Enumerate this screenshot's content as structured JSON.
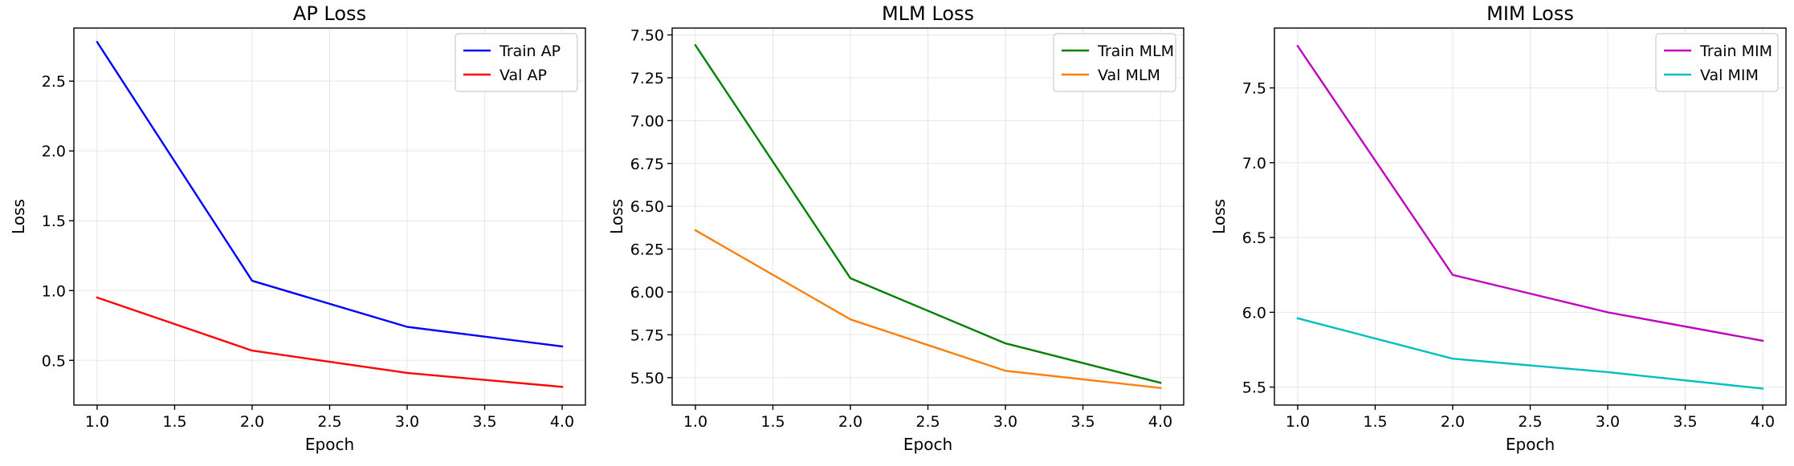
{
  "chart_data": [
    {
      "type": "line",
      "title": "AP Loss",
      "xlabel": "Epoch",
      "ylabel": "Loss",
      "x": [
        1.0,
        2.0,
        3.0,
        4.0
      ],
      "xlim": [
        0.85,
        4.15
      ],
      "ylim": [
        0.18,
        2.88
      ],
      "xticks": [
        1.0,
        1.5,
        2.0,
        2.5,
        3.0,
        3.5,
        4.0
      ],
      "xtick_labels": [
        "1.0",
        "1.5",
        "2.0",
        "2.5",
        "3.0",
        "3.5",
        "4.0"
      ],
      "yticks": [
        0.5,
        1.0,
        1.5,
        2.0,
        2.5
      ],
      "ytick_labels": [
        "0.5",
        "1.0",
        "1.5",
        "2.0",
        "2.5"
      ],
      "grid": true,
      "legend": "top-right",
      "series": [
        {
          "name": "Train AP",
          "color": "#0000ff",
          "values": [
            2.78,
            1.07,
            0.74,
            0.6
          ]
        },
        {
          "name": "Val AP",
          "color": "#ff0000",
          "values": [
            0.95,
            0.57,
            0.41,
            0.31
          ]
        }
      ]
    },
    {
      "type": "line",
      "title": "MLM Loss",
      "xlabel": "Epoch",
      "ylabel": "Loss",
      "x": [
        1.0,
        2.0,
        3.0,
        4.0
      ],
      "xlim": [
        0.85,
        4.15
      ],
      "ylim": [
        5.34,
        7.54
      ],
      "xticks": [
        1.0,
        1.5,
        2.0,
        2.5,
        3.0,
        3.5,
        4.0
      ],
      "xtick_labels": [
        "1.0",
        "1.5",
        "2.0",
        "2.5",
        "3.0",
        "3.5",
        "4.0"
      ],
      "yticks": [
        5.5,
        5.75,
        6.0,
        6.25,
        6.5,
        6.75,
        7.0,
        7.25,
        7.5
      ],
      "ytick_labels": [
        "5.50",
        "5.75",
        "6.00",
        "6.25",
        "6.50",
        "6.75",
        "7.00",
        "7.25",
        "7.50"
      ],
      "grid": true,
      "legend": "top-right",
      "series": [
        {
          "name": "Train MLM",
          "color": "#008000",
          "values": [
            7.44,
            6.08,
            5.7,
            5.47
          ]
        },
        {
          "name": "Val MLM",
          "color": "#ff7f0e",
          "values": [
            6.36,
            5.84,
            5.54,
            5.44
          ]
        }
      ]
    },
    {
      "type": "line",
      "title": "MIM Loss",
      "xlabel": "Epoch",
      "ylabel": "Loss",
      "x": [
        1.0,
        2.0,
        3.0,
        4.0
      ],
      "xlim": [
        0.85,
        4.15
      ],
      "ylim": [
        5.38,
        7.9
      ],
      "xticks": [
        1.0,
        1.5,
        2.0,
        2.5,
        3.0,
        3.5,
        4.0
      ],
      "xtick_labels": [
        "1.0",
        "1.5",
        "2.0",
        "2.5",
        "3.0",
        "3.5",
        "4.0"
      ],
      "yticks": [
        5.5,
        6.0,
        6.5,
        7.0,
        7.5
      ],
      "ytick_labels": [
        "5.5",
        "6.0",
        "6.5",
        "7.0",
        "7.5"
      ],
      "grid": true,
      "legend": "top-right",
      "series": [
        {
          "name": "Train MIM",
          "color": "#bf00bf",
          "values": [
            7.78,
            6.25,
            6.0,
            5.81
          ]
        },
        {
          "name": "Val MIM",
          "color": "#00bfbf",
          "values": [
            5.96,
            5.69,
            5.6,
            5.49
          ]
        }
      ]
    }
  ]
}
